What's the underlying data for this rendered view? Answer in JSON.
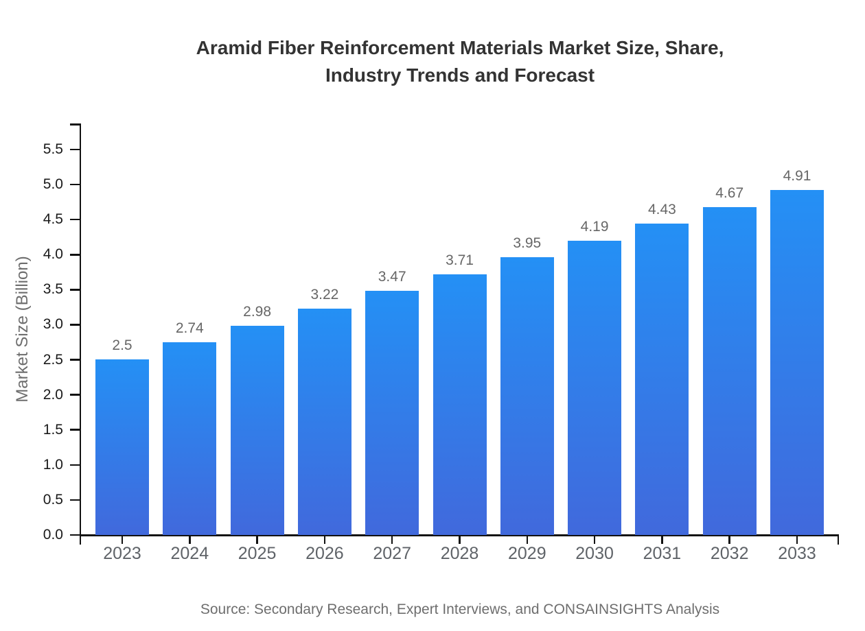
{
  "title": {
    "line1": "Aramid Fiber Reinforcement Materials Market Size, Share,",
    "line2": "Industry Trends and Forecast"
  },
  "source": "Source: Secondary Research, Expert Interviews, and CONSAINSIGHTS Analysis",
  "chart_data": {
    "type": "bar",
    "title": "Aramid Fiber Reinforcement Materials Market Size, Share, Industry Trends and Forecast",
    "xlabel": "",
    "ylabel": "Market Size (Billion)",
    "categories": [
      "2023",
      "2024",
      "2025",
      "2026",
      "2027",
      "2028",
      "2029",
      "2030",
      "2031",
      "2032",
      "2033"
    ],
    "values": [
      2.5,
      2.74,
      2.98,
      3.22,
      3.47,
      3.71,
      3.95,
      4.19,
      4.43,
      4.67,
      4.91
    ],
    "value_labels": [
      "2.5",
      "2.74",
      "2.98",
      "3.22",
      "3.47",
      "3.71",
      "3.95",
      "4.19",
      "4.43",
      "4.67",
      "4.91"
    ],
    "y_ticks": [
      0.0,
      0.5,
      1.0,
      1.5,
      2.0,
      2.5,
      3.0,
      3.5,
      4.0,
      4.5,
      5.0,
      5.5
    ],
    "y_tick_labels": [
      "0.0",
      "0.5",
      "1.0",
      "1.5",
      "2.0",
      "2.5",
      "3.0",
      "3.5",
      "4.0",
      "4.5",
      "5.0",
      "5.5"
    ],
    "ylim": [
      0,
      5.88
    ],
    "grid": false,
    "legend": null,
    "colors": {
      "bar_gradient_top": "#2490F5",
      "bar_gradient_bottom": "#4169DC",
      "axis": "#111111",
      "y_tick_label": "#1a1a1a",
      "category_label": "#5f6368",
      "value_label": "#666666",
      "title": "#333333",
      "muted_text": "#6e6e6e"
    }
  }
}
